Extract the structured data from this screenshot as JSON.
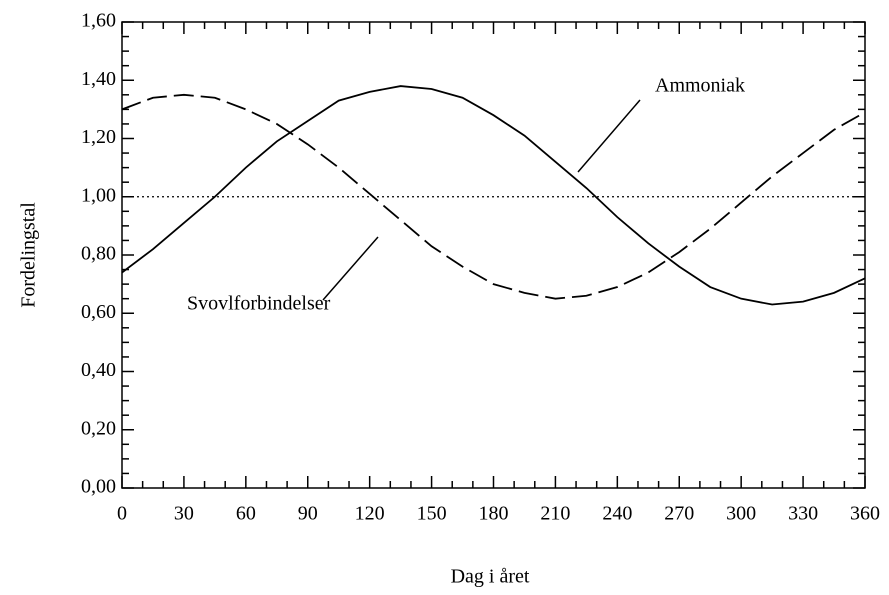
{
  "chart_data": {
    "type": "line",
    "x_label": "Dag i året",
    "y_label": "Fordelingstal",
    "x": [
      0,
      15,
      30,
      45,
      60,
      75,
      90,
      105,
      120,
      135,
      150,
      165,
      180,
      195,
      210,
      225,
      240,
      255,
      270,
      285,
      300,
      315,
      330,
      345,
      360
    ],
    "series": [
      {
        "name": "Ammoniak",
        "color": "#000000",
        "style": "solid",
        "values": [
          0.74,
          0.82,
          0.91,
          1.0,
          1.1,
          1.19,
          1.26,
          1.33,
          1.36,
          1.38,
          1.37,
          1.34,
          1.28,
          1.21,
          1.12,
          1.03,
          0.93,
          0.84,
          0.76,
          0.69,
          0.65,
          0.63,
          0.64,
          0.67,
          0.72
        ]
      },
      {
        "name": "Svovlforbindelser",
        "color": "#000000",
        "style": "dashed",
        "values": [
          1.3,
          1.34,
          1.35,
          1.34,
          1.3,
          1.25,
          1.18,
          1.1,
          1.01,
          0.92,
          0.83,
          0.76,
          0.7,
          0.67,
          0.65,
          0.66,
          0.69,
          0.74,
          0.81,
          0.89,
          0.98,
          1.07,
          1.15,
          1.23,
          1.29
        ]
      }
    ],
    "reference_line": 1.0,
    "xlim": [
      0,
      360
    ],
    "xticks": [
      0,
      30,
      60,
      90,
      120,
      150,
      180,
      210,
      240,
      270,
      300,
      330,
      360
    ],
    "ylim": [
      0,
      1.6
    ],
    "yticks": [
      {
        "value": 0,
        "label": "0,00"
      },
      {
        "value": 0.2,
        "label": "0,20"
      },
      {
        "value": 0.4,
        "label": "0,40"
      },
      {
        "value": 0.6,
        "label": "0,60"
      },
      {
        "value": 0.8,
        "label": "0,80"
      },
      {
        "value": 1.0,
        "label": "1,00"
      },
      {
        "value": 1.2,
        "label": "1,20"
      },
      {
        "value": 1.4,
        "label": "1,40"
      },
      {
        "value": 1.6,
        "label": "1,60"
      }
    ],
    "grid": false
  }
}
